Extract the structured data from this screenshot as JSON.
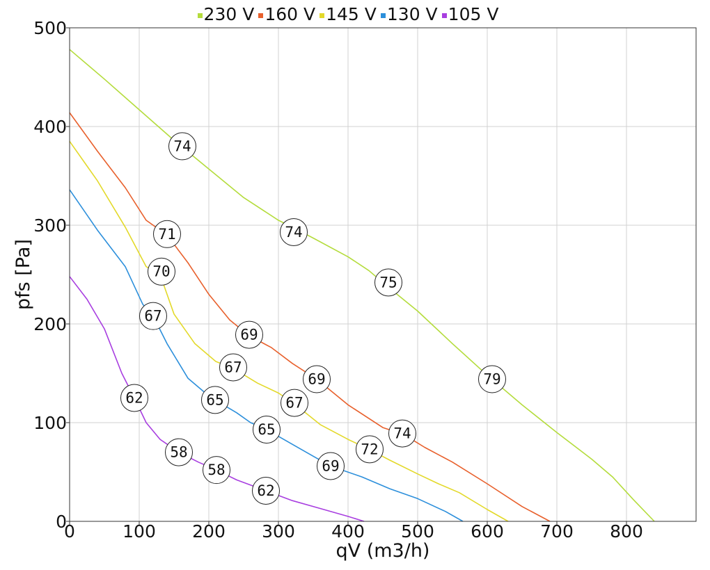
{
  "chart_data": {
    "type": "line",
    "xlabel": "qV (m3/h)",
    "ylabel": "pfs [Pa]",
    "xlim": [
      0,
      900
    ],
    "ylim": [
      0,
      500
    ],
    "xticks": [
      0,
      100,
      200,
      300,
      400,
      500,
      600,
      700,
      800
    ],
    "yticks": [
      0,
      100,
      200,
      300,
      400,
      500
    ],
    "grid": true,
    "legend_position": "top-center",
    "series": [
      {
        "name": "230 V",
        "color": "#b4dc3c",
        "points": [
          [
            0,
            478
          ],
          [
            50,
            448
          ],
          [
            100,
            417
          ],
          [
            150,
            386
          ],
          [
            200,
            357
          ],
          [
            250,
            328
          ],
          [
            300,
            305
          ],
          [
            320,
            298
          ],
          [
            350,
            287
          ],
          [
            400,
            268
          ],
          [
            430,
            254
          ],
          [
            460,
            236
          ],
          [
            500,
            213
          ],
          [
            550,
            180
          ],
          [
            600,
            148
          ],
          [
            650,
            118
          ],
          [
            700,
            90
          ],
          [
            750,
            63
          ],
          [
            780,
            45
          ],
          [
            810,
            22
          ],
          [
            840,
            0
          ]
        ],
        "labels": [
          {
            "x": 162,
            "y": 380,
            "text": "74"
          },
          {
            "x": 322,
            "y": 293,
            "text": "74"
          },
          {
            "x": 458,
            "y": 242,
            "text": "75"
          },
          {
            "x": 607,
            "y": 144,
            "text": "79"
          }
        ]
      },
      {
        "name": "160 V",
        "color": "#e8602c",
        "points": [
          [
            0,
            414
          ],
          [
            40,
            375
          ],
          [
            80,
            338
          ],
          [
            110,
            305
          ],
          [
            140,
            290
          ],
          [
            170,
            262
          ],
          [
            200,
            230
          ],
          [
            230,
            204
          ],
          [
            258,
            188
          ],
          [
            290,
            176
          ],
          [
            320,
            160
          ],
          [
            355,
            144
          ],
          [
            400,
            118
          ],
          [
            450,
            95
          ],
          [
            480,
            88
          ],
          [
            510,
            75
          ],
          [
            550,
            60
          ],
          [
            600,
            38
          ],
          [
            650,
            15
          ],
          [
            690,
            0
          ]
        ],
        "labels": [
          {
            "x": 140,
            "y": 291,
            "text": "71"
          },
          {
            "x": 258,
            "y": 189,
            "text": "69"
          },
          {
            "x": 355,
            "y": 144,
            "text": "69"
          },
          {
            "x": 478,
            "y": 89,
            "text": "74"
          }
        ]
      },
      {
        "name": "145 V",
        "color": "#e3d92a",
        "points": [
          [
            0,
            385
          ],
          [
            40,
            345
          ],
          [
            80,
            298
          ],
          [
            110,
            258
          ],
          [
            130,
            250
          ],
          [
            150,
            210
          ],
          [
            180,
            180
          ],
          [
            210,
            162
          ],
          [
            235,
            155
          ],
          [
            270,
            140
          ],
          [
            300,
            130
          ],
          [
            323,
            119
          ],
          [
            360,
            98
          ],
          [
            400,
            83
          ],
          [
            430,
            73
          ],
          [
            460,
            62
          ],
          [
            500,
            48
          ],
          [
            530,
            38
          ],
          [
            560,
            29
          ],
          [
            600,
            12
          ],
          [
            630,
            0
          ]
        ],
        "labels": [
          {
            "x": 132,
            "y": 253,
            "text": "70"
          },
          {
            "x": 235,
            "y": 156,
            "text": "67"
          },
          {
            "x": 323,
            "y": 120,
            "text": "67"
          },
          {
            "x": 431,
            "y": 73,
            "text": "72"
          }
        ]
      },
      {
        "name": "130 V",
        "color": "#2c8fdb",
        "points": [
          [
            0,
            336
          ],
          [
            40,
            295
          ],
          [
            80,
            258
          ],
          [
            105,
            220
          ],
          [
            120,
            208
          ],
          [
            140,
            180
          ],
          [
            170,
            145
          ],
          [
            195,
            130
          ],
          [
            209,
            123
          ],
          [
            240,
            110
          ],
          [
            260,
            100
          ],
          [
            283,
            93
          ],
          [
            320,
            78
          ],
          [
            350,
            66
          ],
          [
            375,
            56
          ],
          [
            420,
            45
          ],
          [
            460,
            33
          ],
          [
            500,
            23
          ],
          [
            540,
            10
          ],
          [
            565,
            0
          ]
        ],
        "labels": [
          {
            "x": 120,
            "y": 208,
            "text": "67"
          },
          {
            "x": 209,
            "y": 123,
            "text": "65"
          },
          {
            "x": 283,
            "y": 93,
            "text": "65"
          },
          {
            "x": 375,
            "y": 56,
            "text": "69"
          }
        ]
      },
      {
        "name": "105 V",
        "color": "#a83ee0",
        "points": [
          [
            0,
            248
          ],
          [
            25,
            225
          ],
          [
            50,
            195
          ],
          [
            75,
            150
          ],
          [
            93,
            125
          ],
          [
            110,
            100
          ],
          [
            130,
            83
          ],
          [
            157,
            70
          ],
          [
            185,
            60
          ],
          [
            211,
            52
          ],
          [
            240,
            42
          ],
          [
            282,
            31
          ],
          [
            320,
            21
          ],
          [
            360,
            13
          ],
          [
            400,
            5
          ],
          [
            423,
            0
          ]
        ],
        "labels": [
          {
            "x": 93,
            "y": 125,
            "text": "62"
          },
          {
            "x": 157,
            "y": 70,
            "text": "58"
          },
          {
            "x": 211,
            "y": 52,
            "text": "58"
          },
          {
            "x": 282,
            "y": 31,
            "text": "62"
          }
        ]
      }
    ]
  }
}
